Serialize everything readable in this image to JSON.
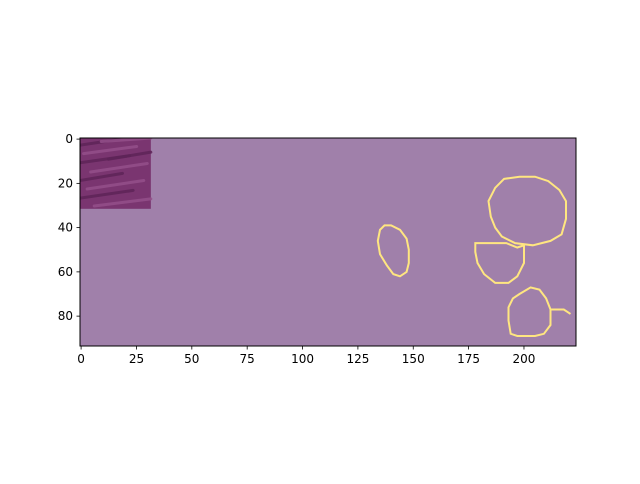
{
  "chart_data": {
    "type": "heatmap",
    "title": "",
    "xlabel": "",
    "ylabel": "",
    "xlim": [
      -0.5,
      223.5
    ],
    "ylim": [
      93.5,
      -0.5
    ],
    "x_ticks": [
      0,
      25,
      50,
      75,
      100,
      125,
      150,
      175,
      200
    ],
    "y_ticks": [
      0,
      20,
      40,
      60,
      80
    ],
    "x_tick_labels": [
      "0",
      "25",
      "50",
      "75",
      "100",
      "125",
      "150",
      "175",
      "200"
    ],
    "y_tick_labels": [
      "0",
      "20",
      "40",
      "60",
      "80"
    ],
    "grid": false,
    "colors": {
      "background_mask": "#a080aa",
      "contour": "#ffe680",
      "texture_base": "#7a3570",
      "texture_dark": "#5e2458",
      "texture_light": "#94508a",
      "axis": "#000000"
    },
    "texture_patch": {
      "x": [
        0,
        31
      ],
      "y": [
        0,
        31
      ]
    },
    "contours": [
      {
        "name": "",
        "points": [
          [
            137,
            39
          ],
          [
            140,
            39
          ],
          [
            144,
            41
          ],
          [
            147,
            45
          ],
          [
            148,
            50
          ],
          [
            148,
            56
          ],
          [
            147,
            60
          ],
          [
            144,
            62
          ],
          [
            141,
            61
          ],
          [
            138,
            57
          ],
          [
            135,
            52
          ],
          [
            134,
            46
          ],
          [
            135,
            41
          ]
        ]
      },
      {
        "name": "",
        "points": [
          [
            191,
            18
          ],
          [
            198,
            17
          ],
          [
            205,
            17
          ],
          [
            211,
            19
          ],
          [
            216,
            23
          ],
          [
            219,
            28
          ],
          [
            219,
            36
          ],
          [
            217,
            43
          ],
          [
            212,
            46
          ],
          [
            204,
            48
          ],
          [
            196,
            47
          ],
          [
            190,
            44
          ],
          [
            187,
            40
          ],
          [
            185,
            35
          ],
          [
            184,
            28
          ],
          [
            187,
            22
          ]
        ]
      },
      {
        "name": "",
        "points": [
          [
            178,
            47
          ],
          [
            192,
            47
          ],
          [
            197,
            49
          ],
          [
            200,
            48
          ],
          [
            200,
            56
          ],
          [
            197,
            62
          ],
          [
            193,
            65
          ],
          [
            187,
            65
          ],
          [
            182,
            61
          ],
          [
            179,
            56
          ],
          [
            178,
            51
          ]
        ]
      },
      {
        "name": "",
        "points": [
          [
            198,
            70
          ],
          [
            203,
            67
          ],
          [
            207,
            68
          ],
          [
            210,
            72
          ],
          [
            212,
            77
          ],
          [
            212,
            84
          ],
          [
            209,
            88
          ],
          [
            205,
            89
          ],
          [
            197,
            89
          ],
          [
            194,
            88
          ],
          [
            193,
            82
          ],
          [
            193,
            76
          ],
          [
            195,
            72
          ]
        ]
      },
      {
        "name": "",
        "points": [
          [
            212,
            77
          ],
          [
            218,
            77
          ],
          [
            221,
            79
          ]
        ]
      }
    ]
  }
}
